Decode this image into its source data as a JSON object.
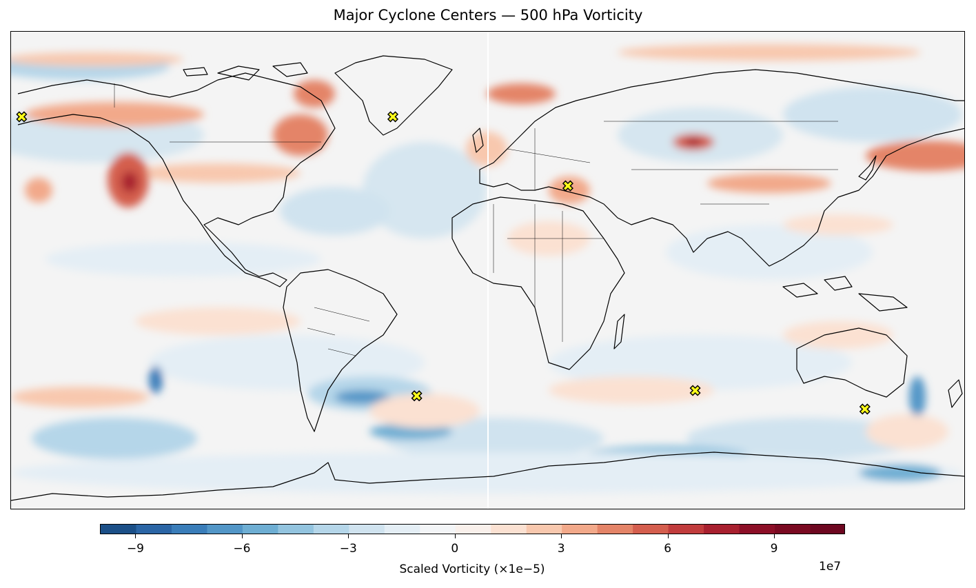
{
  "title": "Major Cyclone Centers — 500 hPa Vorticity",
  "colorbar": {
    "label": "Scaled Vorticity (×1e−5)",
    "offset_text": "1e7",
    "ticks": [
      -9,
      -6,
      -3,
      0,
      3,
      6,
      9
    ],
    "tick_labels": [
      "−9",
      "−6",
      "−3",
      "0",
      "3",
      "6",
      "9"
    ],
    "range": [
      -10,
      11
    ],
    "levels": [
      -10,
      -9,
      -8,
      -7,
      -6,
      -5,
      -4,
      -3,
      -2,
      -1,
      0,
      1,
      2,
      3,
      4,
      5,
      6,
      7,
      8,
      9,
      10,
      11
    ],
    "colormap": "RdBu_r",
    "colors": [
      "#1b4f87",
      "#2b65a5",
      "#3a7db9",
      "#5296c7",
      "#6eaed3",
      "#93c4df",
      "#b5d6e9",
      "#d0e3ef",
      "#e4eef5",
      "#f3f5f7",
      "#f9f0eb",
      "#fbe1d2",
      "#f8c8ae",
      "#f2a98a",
      "#e48468",
      "#d45e4e",
      "#c13c3d",
      "#a8202f",
      "#8c0f27",
      "#7a0a22",
      "#6d0720"
    ]
  },
  "map": {
    "projection": "PlateCarree",
    "extent_lon": [
      -180,
      180
    ],
    "extent_lat": [
      -90,
      90
    ],
    "land_outlines": "coastlines and country borders in black",
    "seam_line_lon": 0
  },
  "cyclone_centers": {
    "marker": "X",
    "marker_color": "#ffff1a",
    "marker_edge_color": "#000000",
    "points": [
      {
        "lon": -176,
        "lat": 58
      },
      {
        "lon": -36,
        "lat": 58
      },
      {
        "lon": 30,
        "lat": 32
      },
      {
        "lon": -27,
        "lat": -47
      },
      {
        "lon": 78,
        "lat": -45
      },
      {
        "lon": 142,
        "lat": -52
      }
    ]
  }
}
